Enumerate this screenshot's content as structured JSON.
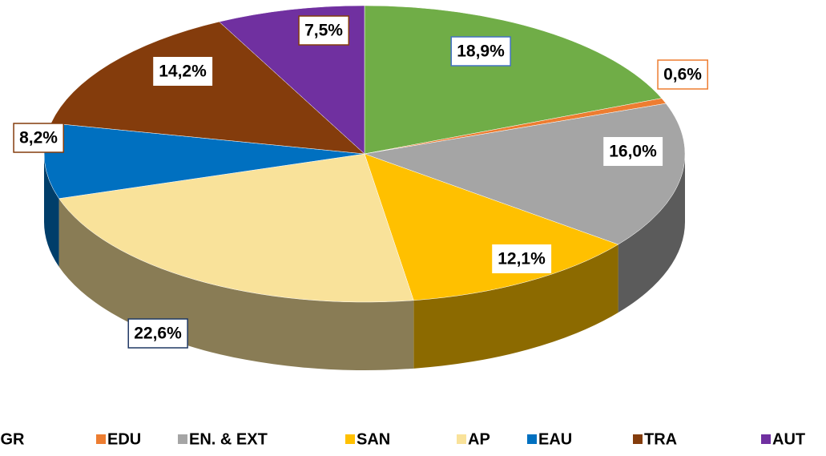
{
  "chart_data": {
    "type": "pie",
    "categories": [
      "AGR",
      "EDU",
      "EN. & EXT",
      "SAN",
      "AP",
      "EAU",
      "TRA",
      "AUT"
    ],
    "values": [
      18.9,
      0.6,
      16.0,
      12.1,
      22.6,
      8.2,
      14.2,
      7.5
    ],
    "value_labels": [
      "18,9%",
      "0,6%",
      "16,0%",
      "12,1%",
      "22,6%",
      "8,2%",
      "14,2%",
      "7,5%"
    ],
    "colors": [
      "#70ad47",
      "#ed7d31",
      "#a5a5a5",
      "#ffc000",
      "#f9e29a",
      "#0070c0",
      "#843c0c",
      "#7030a0"
    ],
    "legend": "bottom"
  }
}
